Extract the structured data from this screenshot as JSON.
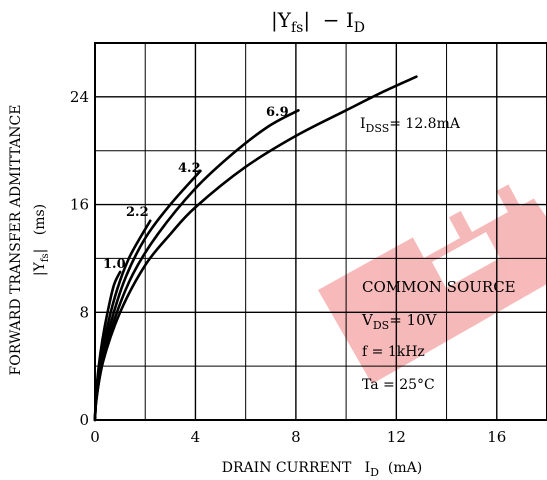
{
  "chart_data": {
    "type": "line",
    "title": {
      "main": "|Y",
      "sub": "fs",
      "rest": "|  − I",
      "sub2": "D"
    },
    "ylabel": {
      "line1": "FORWARD TRANSFER ADMITTANCE",
      "pre": "|Y",
      "sub": "fs",
      "post": "|   (ms)"
    },
    "xlabel": {
      "pre": "DRAIN CURRENT   I",
      "sub": "D",
      "post": "  (mA)"
    },
    "xlim": [
      0,
      18
    ],
    "ylim": [
      0,
      28
    ],
    "grid": true,
    "x_ticks": [
      0,
      4,
      8,
      12,
      16
    ],
    "y_ticks": [
      0,
      8,
      16,
      24
    ],
    "x_tick_labels": [
      "0",
      "4",
      "8",
      "12",
      "16"
    ],
    "y_tick_labels": [
      "0",
      "8",
      "16",
      "24"
    ],
    "series": [
      {
        "label": "1.0",
        "points": [
          [
            0.05,
            2.0
          ],
          [
            0.15,
            4.0
          ],
          [
            0.3,
            6.0
          ],
          [
            0.5,
            8.0
          ],
          [
            0.75,
            10.0
          ],
          [
            1.0,
            11.0
          ]
        ]
      },
      {
        "label": "2.2",
        "points": [
          [
            0.05,
            1.8
          ],
          [
            0.2,
            4.0
          ],
          [
            0.5,
            7.0
          ],
          [
            0.9,
            9.8
          ],
          [
            1.4,
            12.2
          ],
          [
            2.2,
            14.8
          ]
        ]
      },
      {
        "label": "4.2",
        "points": [
          [
            0.05,
            1.6
          ],
          [
            0.25,
            4.0
          ],
          [
            0.6,
            7.0
          ],
          [
            1.2,
            10.5
          ],
          [
            2.0,
            13.5
          ],
          [
            3.0,
            16.0
          ],
          [
            4.2,
            18.5
          ]
        ]
      },
      {
        "label": "6.9",
        "points": [
          [
            0.05,
            1.5
          ],
          [
            0.3,
            4.2
          ],
          [
            0.8,
            7.6
          ],
          [
            1.5,
            10.8
          ],
          [
            2.5,
            13.8
          ],
          [
            4.0,
            17.2
          ],
          [
            5.5,
            19.8
          ],
          [
            6.9,
            21.8
          ],
          [
            8.1,
            23.0
          ]
        ]
      },
      {
        "label": "I_DSS=12.8mA",
        "points": [
          [
            0.05,
            1.4
          ],
          [
            0.3,
            4.2
          ],
          [
            1.0,
            8.0
          ],
          [
            2.0,
            11.5
          ],
          [
            3.0,
            13.8
          ],
          [
            4.0,
            15.8
          ],
          [
            6.0,
            18.8
          ],
          [
            8.0,
            21.1
          ],
          [
            10.0,
            23.0
          ],
          [
            11.5,
            24.4
          ],
          [
            12.8,
            25.5
          ]
        ]
      }
    ],
    "annotations": {
      "s1": "1.0",
      "s2": "2.2",
      "s3": "4.2",
      "s4": "6.9",
      "idss_pre": "I",
      "idss_sub": "DSS",
      "idss_post": "= 12.8mA",
      "common_source": "COMMON SOURCE",
      "vds_pre": "V",
      "vds_sub": "DS",
      "vds_post": "= 10V",
      "freq": "f = 1kHz",
      "ta": "Ta = 25°C"
    }
  },
  "watermark": {
    "color": "#f08080"
  }
}
